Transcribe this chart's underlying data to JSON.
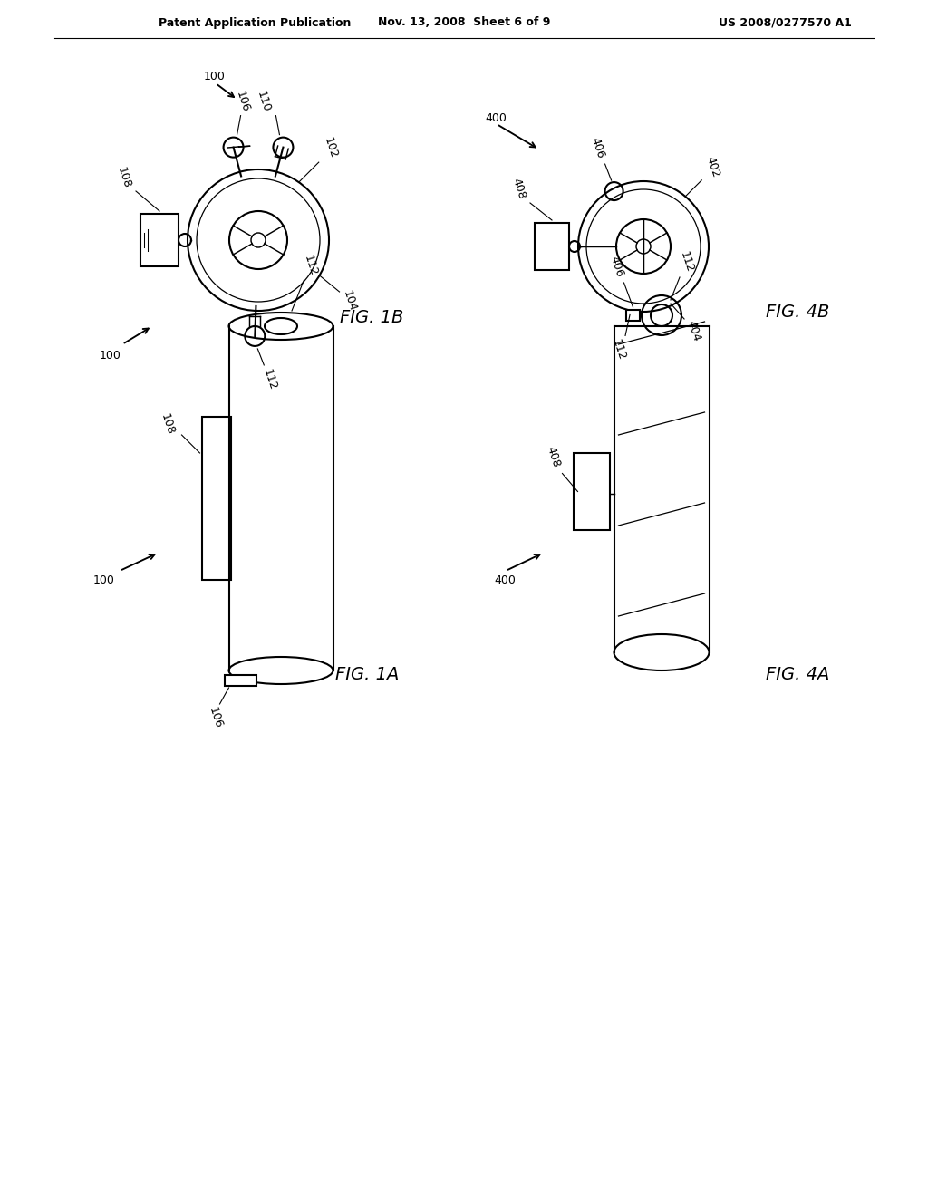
{
  "bg_color": "#ffffff",
  "header_left": "Patent Application Publication",
  "header_mid": "Nov. 13, 2008  Sheet 6 of 9",
  "header_right": "US 2008/0277570 A1",
  "line_color": "#000000",
  "lw": 1.5
}
